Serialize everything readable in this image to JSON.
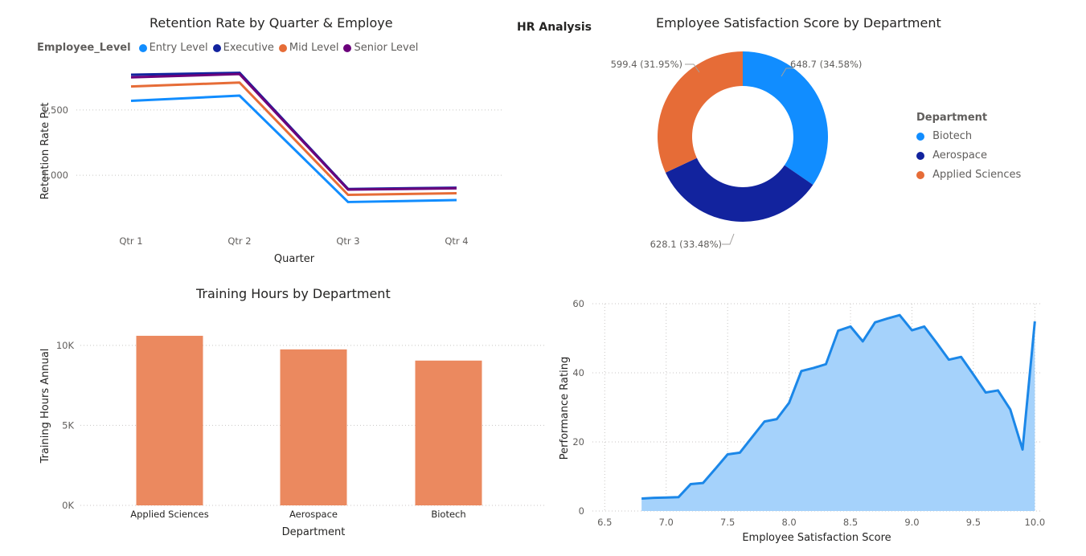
{
  "page": {
    "title": "HR Analysis"
  },
  "colors": {
    "entry": "#118DFF",
    "executive": "#12239E",
    "mid": "#E66C37",
    "senior": "#6B007B",
    "bar": "#EB895F",
    "area_line": "#1B87E8",
    "area_fill": "#A5D2FB"
  },
  "chart_data": [
    {
      "type": "line",
      "title": "Retention Rate by Quarter & Employe",
      "xlabel": "Quarter",
      "ylabel": "Retention Rate Pct",
      "legend_title": "Employee_Level",
      "categories": [
        "Qtr 1",
        "Qtr 2",
        "Qtr 3",
        "Qtr 4"
      ],
      "yticks": [
        {
          "v": 1000,
          "label": "1,000"
        },
        {
          "v": 1500,
          "label": "1,500"
        }
      ],
      "ylim": [
        650,
        1850
      ],
      "series": [
        {
          "name": "Entry Level",
          "color": "#118DFF",
          "values": [
            1570,
            1610,
            795,
            810
          ]
        },
        {
          "name": "Executive",
          "color": "#12239E",
          "values": [
            1770,
            1785,
            895,
            905
          ]
        },
        {
          "name": "Mid Level",
          "color": "#E66C37",
          "values": [
            1680,
            1710,
            850,
            862
          ]
        },
        {
          "name": "Senior Level",
          "color": "#6B007B",
          "values": [
            1750,
            1775,
            890,
            900
          ]
        }
      ],
      "grid": true,
      "legend_position": "top-left"
    },
    {
      "type": "pie",
      "title": "Employee Satisfaction Score by Department",
      "legend_title": "Department",
      "slices": [
        {
          "name": "Biotech",
          "value": 648.7,
          "label": "648.7 (34.58%)",
          "color": "#118DFF"
        },
        {
          "name": "Aerospace",
          "value": 628.1,
          "label": "628.1 (33.48%)",
          "color": "#12239E"
        },
        {
          "name": "Applied Sciences",
          "value": 599.4,
          "label": "599.4 (31.95%)",
          "color": "#E66C37"
        }
      ],
      "legend_position": "right"
    },
    {
      "type": "bar",
      "title": "Training Hours by Department",
      "xlabel": "Department",
      "ylabel": "Training Hours Annual",
      "categories": [
        "Applied Sciences",
        "Aerospace",
        "Biotech"
      ],
      "values": [
        10600,
        9750,
        9050
      ],
      "yticks": [
        {
          "v": 0,
          "label": "0K"
        },
        {
          "v": 5000,
          "label": "5K"
        },
        {
          "v": 10000,
          "label": "10K"
        }
      ],
      "ylim": [
        0,
        11500
      ],
      "grid": true
    },
    {
      "type": "area",
      "title": "",
      "xlabel": "Employee Satisfaction Score",
      "ylabel": "Performance Rating",
      "xlim": [
        6.4,
        10.05
      ],
      "ylim": [
        0,
        60
      ],
      "xticks": [
        {
          "v": 6.5,
          "label": "6.5"
        },
        {
          "v": 7.0,
          "label": "7.0"
        },
        {
          "v": 7.5,
          "label": "7.5"
        },
        {
          "v": 8.0,
          "label": "8.0"
        },
        {
          "v": 8.5,
          "label": "8.5"
        },
        {
          "v": 9.0,
          "label": "9.0"
        },
        {
          "v": 9.5,
          "label": "9.5"
        },
        {
          "v": 10.0,
          "label": "10.0"
        }
      ],
      "yticks": [
        {
          "v": 0,
          "label": "0"
        },
        {
          "v": 20,
          "label": "20"
        },
        {
          "v": 40,
          "label": "40"
        },
        {
          "v": 60,
          "label": "60"
        }
      ],
      "x": [
        6.8,
        6.9,
        7.0,
        7.1,
        7.2,
        7.3,
        7.4,
        7.5,
        7.6,
        7.7,
        7.8,
        7.9,
        8.0,
        8.1,
        8.2,
        8.3,
        8.4,
        8.5,
        8.6,
        8.7,
        8.8,
        8.9,
        9.0,
        9.1,
        9.2,
        9.3,
        9.4,
        9.5,
        9.6,
        9.7,
        9.8,
        9.9,
        10.0
      ],
      "y": [
        3.6,
        3.8,
        3.9,
        4.0,
        7.8,
        8.1,
        12.2,
        16.4,
        16.9,
        21.4,
        25.9,
        26.6,
        31.3,
        40.5,
        41.4,
        42.5,
        52.2,
        53.4,
        49.1,
        54.6,
        55.7,
        56.7,
        52.3,
        53.4,
        48.7,
        43.8,
        44.6,
        39.5,
        34.3,
        34.9,
        29.4,
        17.8,
        54.9
      ],
      "grid": true
    }
  ]
}
